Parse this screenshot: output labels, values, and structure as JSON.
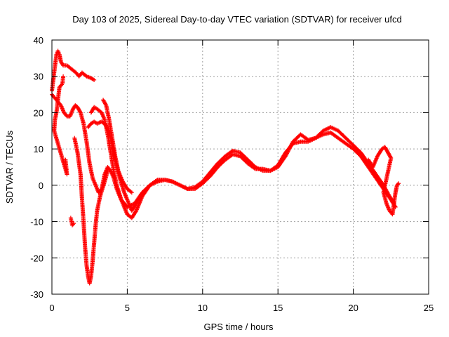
{
  "chart_data": {
    "type": "scatter",
    "title": "Day 103 of 2025, Sidereal Day-to-day VTEC variation (SDTVAR) for receiver ufcd",
    "xlabel": "GPS time / hours",
    "ylabel": "SDTVAR / TECUs",
    "xlim": [
      0,
      25
    ],
    "ylim": [
      -30,
      40
    ],
    "xticks": [
      0,
      5,
      10,
      15,
      20,
      25
    ],
    "yticks": [
      -30,
      -20,
      -10,
      0,
      10,
      20,
      30,
      40
    ],
    "grid": true,
    "marker": "+",
    "color": "#ff0000",
    "series": [
      {
        "name": "trace-1",
        "points": [
          [
            0.0,
            26
          ],
          [
            0.15,
            31
          ],
          [
            0.3,
            36
          ],
          [
            0.4,
            37
          ],
          [
            0.5,
            36
          ],
          [
            0.6,
            34
          ],
          [
            0.75,
            33
          ],
          [
            1.0,
            33
          ],
          [
            1.3,
            32
          ],
          [
            1.6,
            31
          ],
          [
            1.8,
            30
          ],
          [
            2.0,
            31
          ],
          [
            2.3,
            30
          ],
          [
            2.6,
            29.5
          ],
          [
            2.8,
            29
          ]
        ]
      },
      {
        "name": "trace-2",
        "points": [
          [
            0.0,
            25
          ],
          [
            0.2,
            24
          ],
          [
            0.4,
            23
          ],
          [
            0.6,
            22
          ],
          [
            0.8,
            20
          ],
          [
            1.0,
            19
          ],
          [
            1.2,
            19
          ],
          [
            1.4,
            21
          ],
          [
            1.55,
            22
          ],
          [
            1.7,
            21.5
          ],
          [
            1.9,
            20
          ],
          [
            2.1,
            17
          ],
          [
            2.3,
            12
          ],
          [
            2.5,
            6
          ],
          [
            2.7,
            2
          ],
          [
            2.9,
            0
          ],
          [
            3.1,
            -2
          ],
          [
            3.3,
            -1
          ],
          [
            3.5,
            3
          ],
          [
            3.7,
            5
          ],
          [
            3.9,
            4
          ],
          [
            4.1,
            2
          ],
          [
            4.3,
            -1
          ],
          [
            4.6,
            -4
          ],
          [
            5.0,
            -6
          ],
          [
            5.5,
            -5
          ],
          [
            6.0,
            -2
          ],
          [
            6.5,
            0
          ],
          [
            7.0,
            1.5
          ],
          [
            7.5,
            1.5
          ],
          [
            8.0,
            1
          ],
          [
            8.5,
            0
          ],
          [
            9.0,
            -1
          ],
          [
            9.5,
            -1
          ],
          [
            10.0,
            0.5
          ],
          [
            10.5,
            2.5
          ],
          [
            11.0,
            5
          ],
          [
            11.5,
            7
          ],
          [
            12.0,
            8.5
          ],
          [
            12.5,
            8
          ],
          [
            13.0,
            6
          ],
          [
            13.5,
            4.5
          ],
          [
            14.0,
            4.5
          ],
          [
            14.5,
            4
          ],
          [
            15.0,
            5
          ],
          [
            15.5,
            8
          ],
          [
            16.0,
            12
          ],
          [
            16.5,
            14
          ],
          [
            17.0,
            12.5
          ],
          [
            17.5,
            13
          ],
          [
            18.0,
            14
          ],
          [
            18.5,
            14.5
          ],
          [
            19.0,
            13
          ],
          [
            19.5,
            11.5
          ],
          [
            20.0,
            10
          ],
          [
            20.5,
            8
          ],
          [
            21.0,
            5
          ],
          [
            21.5,
            2
          ],
          [
            22.0,
            -1
          ],
          [
            22.5,
            -4
          ],
          [
            22.8,
            -6
          ]
        ]
      },
      {
        "name": "trace-3",
        "points": [
          [
            2.4,
            16
          ],
          [
            2.6,
            17
          ],
          [
            2.8,
            17.5
          ],
          [
            3.0,
            17
          ],
          [
            3.3,
            17.5
          ],
          [
            3.6,
            16.5
          ],
          [
            3.9,
            13
          ],
          [
            4.2,
            7
          ],
          [
            4.5,
            2
          ],
          [
            4.8,
            -2
          ],
          [
            5.0,
            -4
          ],
          [
            5.3,
            -7
          ],
          [
            5.6,
            -5
          ],
          [
            6.0,
            -2
          ],
          [
            6.5,
            0
          ],
          [
            7.0,
            1
          ],
          [
            7.5,
            1.5
          ],
          [
            8.0,
            1
          ],
          [
            8.5,
            0
          ],
          [
            9.0,
            -1
          ],
          [
            9.5,
            -0.5
          ],
          [
            10.0,
            1
          ],
          [
            10.5,
            3.5
          ],
          [
            11.0,
            6
          ],
          [
            11.5,
            8
          ],
          [
            12.0,
            9.5
          ],
          [
            12.5,
            9
          ],
          [
            13.0,
            7
          ],
          [
            13.5,
            5
          ],
          [
            14.0,
            4
          ],
          [
            14.5,
            4
          ],
          [
            15.0,
            5.5
          ],
          [
            15.5,
            9
          ],
          [
            16.0,
            11.5
          ],
          [
            16.5,
            12
          ],
          [
            17.0,
            12
          ],
          [
            17.5,
            13
          ],
          [
            18.0,
            15
          ],
          [
            18.5,
            16
          ],
          [
            19.0,
            15
          ],
          [
            19.5,
            13
          ],
          [
            20.0,
            11
          ],
          [
            20.5,
            9
          ],
          [
            21.0,
            6
          ],
          [
            21.5,
            3
          ],
          [
            22.0,
            0
          ],
          [
            22.4,
            -3
          ],
          [
            22.7,
            -5
          ]
        ]
      },
      {
        "name": "trace-4",
        "points": [
          [
            2.6,
            20
          ],
          [
            2.8,
            21.5
          ],
          [
            3.0,
            21
          ],
          [
            3.3,
            20
          ],
          [
            3.5,
            18
          ],
          [
            3.7,
            14
          ],
          [
            3.9,
            9
          ],
          [
            4.1,
            4
          ],
          [
            4.3,
            0
          ],
          [
            4.6,
            -4
          ],
          [
            5.0,
            -8
          ],
          [
            5.3,
            -9
          ],
          [
            5.6,
            -7
          ],
          [
            6.0,
            -3
          ],
          [
            6.5,
            0
          ]
        ]
      },
      {
        "name": "trace-5",
        "points": [
          [
            3.4,
            23.5
          ],
          [
            3.6,
            22
          ],
          [
            3.8,
            18
          ],
          [
            4.0,
            13
          ],
          [
            4.2,
            8
          ],
          [
            4.4,
            4
          ],
          [
            4.7,
            1
          ],
          [
            5.0,
            -1
          ],
          [
            5.3,
            -2
          ]
        ]
      },
      {
        "name": "trace-6",
        "points": [
          [
            1.5,
            13
          ],
          [
            1.7,
            9
          ],
          [
            1.9,
            3
          ],
          [
            2.0,
            -4
          ],
          [
            2.1,
            -10
          ],
          [
            2.2,
            -17
          ],
          [
            2.3,
            -22
          ],
          [
            2.4,
            -25
          ],
          [
            2.5,
            -27
          ],
          [
            2.6,
            -25
          ],
          [
            2.7,
            -21
          ],
          [
            2.8,
            -16
          ],
          [
            2.9,
            -11
          ],
          [
            3.0,
            -7
          ],
          [
            3.2,
            -3
          ],
          [
            3.5,
            1
          ],
          [
            3.7,
            4
          ]
        ]
      },
      {
        "name": "trace-7",
        "points": [
          [
            1.25,
            -9
          ],
          [
            1.3,
            -10
          ],
          [
            1.35,
            -11
          ],
          [
            1.45,
            -10.5
          ]
        ]
      },
      {
        "name": "trace-8",
        "points": [
          [
            0.9,
            7
          ],
          [
            0.95,
            5
          ],
          [
            1.0,
            3
          ],
          [
            0.15,
            15
          ],
          [
            0.2,
            18
          ],
          [
            0.3,
            20
          ],
          [
            0.5,
            27
          ],
          [
            0.7,
            28
          ],
          [
            0.75,
            30
          ]
        ]
      },
      {
        "name": "trace-9",
        "points": [
          [
            21.0,
            7
          ],
          [
            21.3,
            5
          ],
          [
            21.6,
            8
          ],
          [
            21.9,
            10
          ],
          [
            22.1,
            10.5
          ],
          [
            22.3,
            9
          ],
          [
            22.5,
            7.5
          ],
          [
            22.0,
            -2
          ],
          [
            22.2,
            -5
          ],
          [
            22.4,
            -7
          ],
          [
            22.6,
            -8
          ],
          [
            22.8,
            -2
          ],
          [
            22.9,
            0
          ],
          [
            23.0,
            0.5
          ]
        ]
      }
    ]
  }
}
